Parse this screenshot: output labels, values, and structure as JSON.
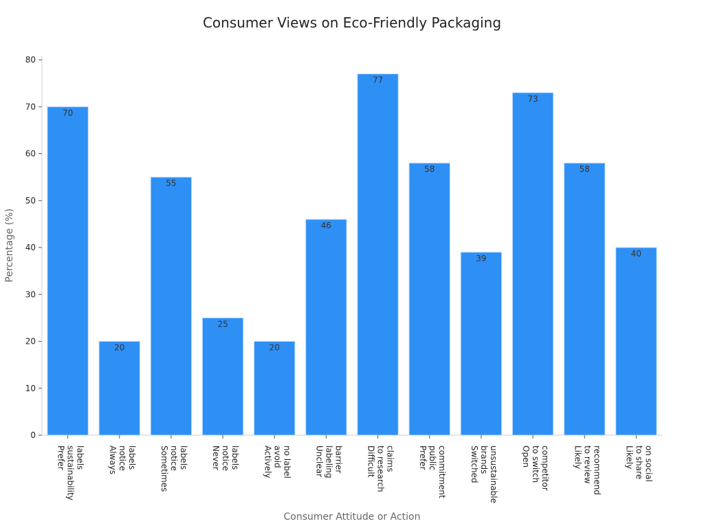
{
  "chart_data": {
    "type": "bar",
    "title": "Consumer Views on Eco-Friendly Packaging",
    "xlabel": "Consumer Attitude or Action",
    "ylabel": "Percentage (%)",
    "ylim": [
      0,
      80
    ],
    "yticks": [
      0,
      10,
      20,
      30,
      40,
      50,
      60,
      70,
      80
    ],
    "grid": false,
    "bar_color": "#2e90f5",
    "categories": [
      [
        "Prefer",
        "sustainability",
        "labels"
      ],
      [
        "Always",
        "notice",
        "labels"
      ],
      [
        "Sometimes",
        "notice",
        "labels"
      ],
      [
        "Never",
        "notice",
        "labels"
      ],
      [
        "Actively",
        "avoid",
        "no label"
      ],
      [
        "Unclear",
        "labeling",
        "barrier"
      ],
      [
        "Difficult",
        "to research",
        "claims"
      ],
      [
        "Prefer",
        "public",
        "commitment"
      ],
      [
        "Switched",
        "brands",
        "unsustainable"
      ],
      [
        "Open",
        "to switch",
        "competitor"
      ],
      [
        "Likely",
        "to review",
        "recommend"
      ],
      [
        "Likely",
        "to share",
        "on social"
      ]
    ],
    "values": [
      70,
      20,
      55,
      25,
      20,
      46,
      77,
      58,
      39,
      73,
      58,
      40
    ]
  }
}
